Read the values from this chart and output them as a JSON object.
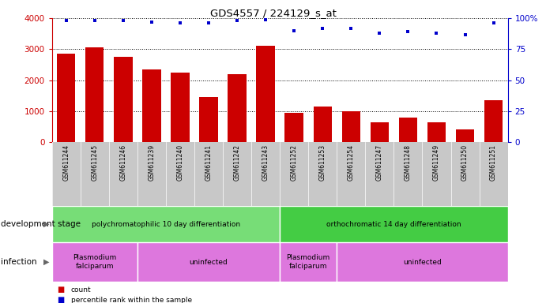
{
  "title": "GDS4557 / 224129_s_at",
  "samples": [
    "GSM611244",
    "GSM611245",
    "GSM611246",
    "GSM611239",
    "GSM611240",
    "GSM611241",
    "GSM611242",
    "GSM611243",
    "GSM611252",
    "GSM611253",
    "GSM611254",
    "GSM611247",
    "GSM611248",
    "GSM611249",
    "GSM611250",
    "GSM611251"
  ],
  "counts": [
    2850,
    3050,
    2750,
    2350,
    2250,
    1450,
    2200,
    3100,
    950,
    1150,
    1000,
    650,
    800,
    650,
    430,
    1350
  ],
  "percentiles": [
    98,
    98,
    98,
    97,
    96,
    96,
    98,
    99,
    90,
    92,
    92,
    88,
    89,
    88,
    87,
    96
  ],
  "bar_color": "#cc0000",
  "dot_color": "#0000cc",
  "left_axis_color": "#cc0000",
  "right_axis_color": "#0000cc",
  "ylim_left": [
    0,
    4000
  ],
  "ylim_right": [
    0,
    100
  ],
  "left_yticks": [
    0,
    1000,
    2000,
    3000,
    4000
  ],
  "right_yticks": [
    0,
    25,
    50,
    75,
    100
  ],
  "right_yticklabels": [
    "0",
    "25",
    "50",
    "75",
    "100%"
  ],
  "bg_color": "#ffffff",
  "stage_groups": [
    {
      "label": "polychromatophilic 10 day differentiation",
      "start": 0,
      "end": 8,
      "color": "#66dd66"
    },
    {
      "label": "orthochromatic 14 day differentiation",
      "start": 8,
      "end": 16,
      "color": "#44cc44"
    }
  ],
  "infection_groups": [
    {
      "label": "Plasmodium\nfalciparum",
      "start": 0,
      "end": 3,
      "color": "#dd66dd"
    },
    {
      "label": "uninfected",
      "start": 3,
      "end": 8,
      "color": "#dd66dd"
    },
    {
      "label": "Plasmodium\nfalciparum",
      "start": 8,
      "end": 10,
      "color": "#dd66dd"
    },
    {
      "label": "uninfected",
      "start": 10,
      "end": 16,
      "color": "#dd66dd"
    }
  ],
  "legend_items": [
    {
      "color": "#cc0000",
      "label": "count"
    },
    {
      "color": "#0000cc",
      "label": "percentile rank within the sample"
    }
  ],
  "dev_stage_label": "development stage",
  "infection_label": "infection",
  "tick_label_bg": "#c8c8c8"
}
